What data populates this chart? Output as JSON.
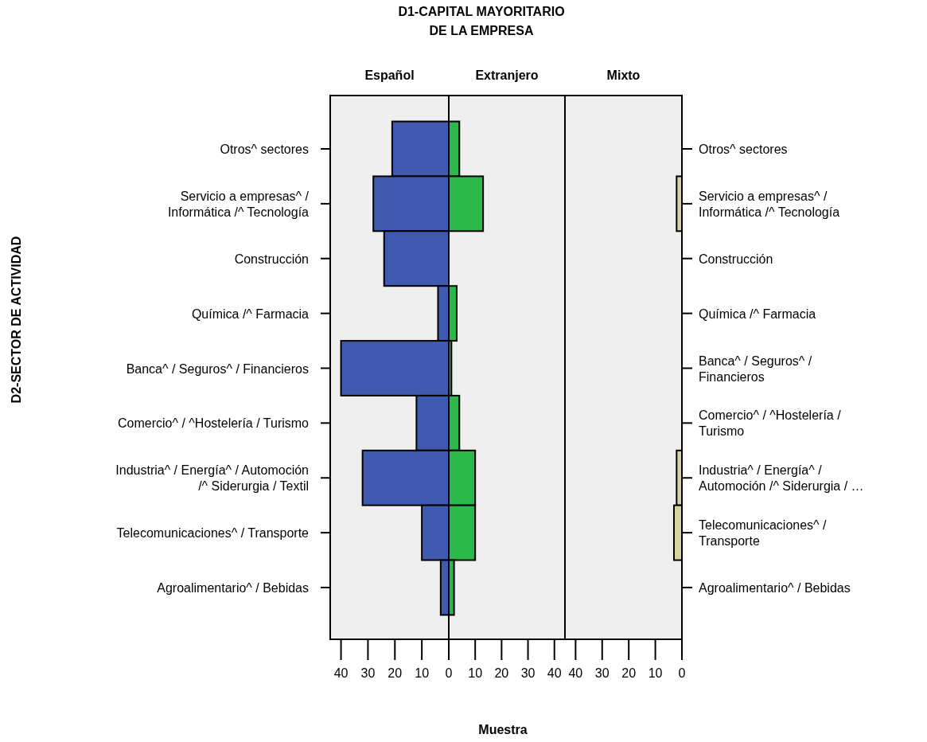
{
  "chart_data": [
    {
      "type": "bar",
      "orientation": "horizontal",
      "title": "D1-CAPITAL MAYORITARIO\nDE LA EMPRESA",
      "subtitle": "Español",
      "ylabel": "D2-SECTOR DE ACTIVIDAD",
      "categories": [
        "Otros^ sectores",
        "Servicio a empresas^ /\nInformática /^ Tecnología",
        "Construcción",
        "Química /^ Farmacia",
        "Banca^ / Seguros^ / Financieros",
        "Comercio^ / ^Hostelería / Turismo",
        "Industria^ / Energía^ / Automoción\n/^ Siderurgia / Textil",
        "Telecomunicaciones^ / Transporte",
        "Agroalimentario^ / Bebidas"
      ],
      "values": [
        21,
        28,
        24,
        4,
        40,
        12,
        32,
        10,
        3
      ],
      "color": "#3f5aae",
      "xlim": [
        44,
        0
      ],
      "xticks": [
        40,
        30,
        20,
        10,
        0
      ]
    },
    {
      "type": "bar",
      "orientation": "horizontal",
      "subtitle": "Extranjero",
      "xlabel": "Muestra",
      "tick_labels": "x",
      "categories": [
        null,
        null,
        null,
        null,
        null,
        null,
        null,
        null,
        null
      ],
      "values": [
        4,
        13,
        0,
        3,
        1,
        4,
        10,
        10,
        2
      ],
      "color": "#2db84b",
      "xlim": [
        0,
        44
      ],
      "xticks": [
        {
          "value": 0,
          "label": null
        },
        10,
        20,
        30,
        40
      ]
    },
    {
      "type": "bar",
      "orientation": "horizontal",
      "subtitle": "Mixto",
      "tick_labels": "x",
      "categories": [
        null,
        null,
        null,
        null,
        null,
        null,
        null,
        null,
        null
      ],
      "y2_categories": [
        "Otros^ sectores",
        "Servicio a empresas^ /\nInformática /^ Tecnología",
        "Construcción",
        "Química /^ Farmacia",
        "Banca^ / Seguros^ /\nFinancieros",
        "Comercio^ / ^Hostelería /\nTurismo",
        "Industria^ / Energía^ /\nAutomoción /^ Siderurgia / …",
        "Telecomunicaciones^ /\nTransporte",
        "Agroalimentario^ / Bebidas"
      ],
      "values": [
        0,
        2,
        0,
        0,
        0,
        0,
        2,
        3,
        0
      ],
      "color": "#d7d39b",
      "xlim": [
        44,
        0
      ],
      "xticks": [
        40,
        30,
        20,
        10,
        0
      ]
    }
  ]
}
